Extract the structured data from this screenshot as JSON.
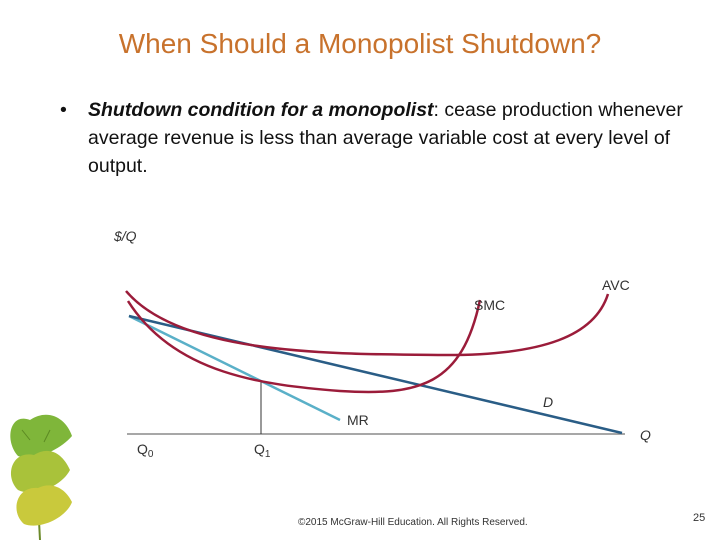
{
  "slide": {
    "title": "When Should a Monopolist Shutdown?",
    "bullet_lead": "Shutdown condition for a monopolist",
    "bullet_colon": ":  ",
    "bullet_rest": "cease production whenever average revenue is less than average variable cost at every level of output.",
    "footer": "©2015 McGraw-Hill Education. All Rights Reserved.",
    "page_number": "25"
  },
  "diagram": {
    "y_axis_label": "$/Q",
    "x_axis_label": "Q",
    "q0_label": "Q",
    "q0_sub": "0",
    "q1_label": "Q",
    "q1_sub": "1",
    "curves": {
      "avc": {
        "label": "AVC",
        "color": "#9b1c3a"
      },
      "smc": {
        "label": "SMC",
        "color": "#9b1c3a"
      },
      "demand": {
        "label": "D",
        "color": "#2a5d86"
      },
      "mr": {
        "label": "MR",
        "color": "#5ab0c8"
      }
    },
    "axis_color": "#8a8a8a"
  },
  "decoration": {
    "leaves": "ginkgo-leaves-icon"
  }
}
